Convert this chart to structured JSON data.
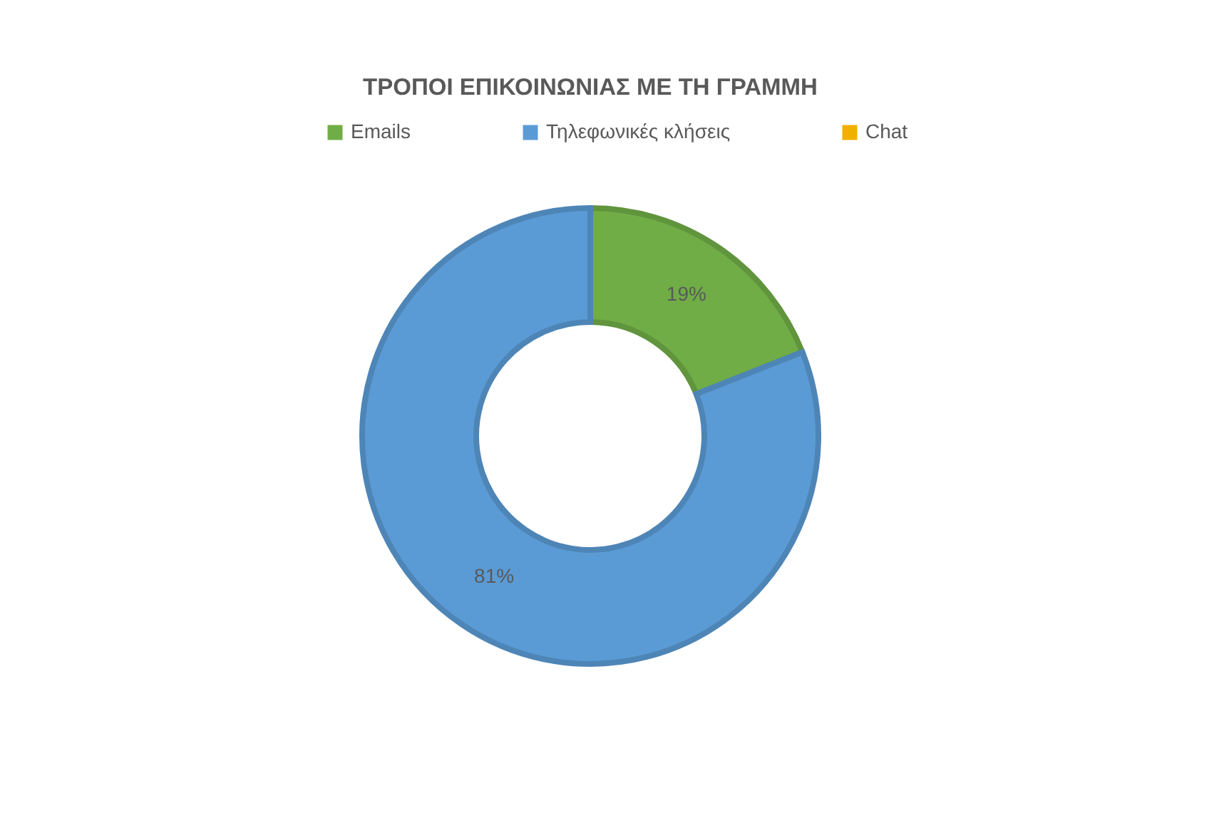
{
  "chart_data": {
    "type": "donut",
    "title": "ΤΡΟΠΟΙ ΕΠΙΚΟΙΝΩΝΙΑΣ ΜΕ ΤΗ ΓΡΑΜΜΗ",
    "categories": [
      "Emails",
      "Τηλεφωνικές κλήσεις",
      "Chat"
    ],
    "values": [
      19,
      81,
      0
    ],
    "colors": [
      "#70ad47",
      "#5b9bd5",
      "#f0b000"
    ],
    "value_labels": [
      "19%",
      "81%",
      null
    ],
    "legend": "top"
  }
}
